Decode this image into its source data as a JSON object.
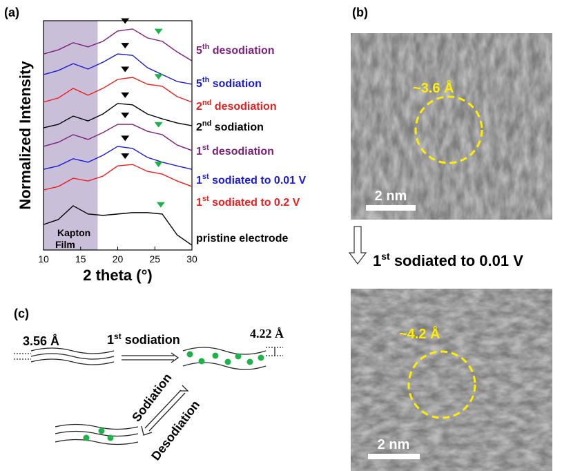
{
  "panel_labels": [
    "(a)",
    "(b)",
    "(c)"
  ],
  "chart_data": {
    "type": "line",
    "x_label": "2 theta (°)",
    "y_label": "Normalized Intensity",
    "xlim": [
      10,
      30
    ],
    "xticks": [
      10,
      15,
      20,
      25,
      30
    ],
    "ylim": [
      0,
      10
    ],
    "shaded_region": {
      "range": [
        10,
        17.3
      ],
      "color": "#c9bfd8",
      "label": [
        "Kapton",
        "Film"
      ]
    },
    "x": [
      10,
      12,
      14,
      16,
      18,
      20,
      22,
      24,
      26,
      28,
      30
    ],
    "series": [
      {
        "name": {
          "num": "5",
          "sup": "th",
          "text": " desodiation"
        },
        "color": "#7b1f7b",
        "values": [
          8.55,
          8.73,
          9.04,
          8.86,
          9.1,
          9.55,
          9.64,
          9.25,
          9.1,
          8.64,
          8.25
        ],
        "markers": [
          {
            "x": 21,
            "color": "#000000"
          },
          {
            "x": 25.5,
            "color": "#1db34a"
          }
        ]
      },
      {
        "name": {
          "num": "5",
          "sup": "th",
          "text": " sodiation"
        },
        "color": "#1a1ad6",
        "values": [
          7.65,
          7.83,
          8.13,
          7.89,
          8.19,
          8.55,
          8.49,
          7.95,
          7.65,
          7.35,
          7.23
        ],
        "markers": [
          {
            "x": 21,
            "color": "#000000"
          }
        ]
      },
      {
        "name": {
          "num": "2",
          "sup": "nd",
          "text": " desodiation"
        },
        "color": "#f01c1c",
        "values": [
          6.45,
          6.63,
          7.05,
          6.75,
          7.05,
          7.44,
          7.53,
          7.23,
          7.14,
          6.69,
          6.45
        ],
        "markers": [
          {
            "x": 21,
            "color": "#000000"
          },
          {
            "x": 25.5,
            "color": "#1db34a"
          }
        ]
      },
      {
        "name": {
          "num": "2",
          "sup": "nd",
          "text": " sodiation"
        },
        "color": "#000000",
        "values": [
          5.33,
          5.48,
          5.84,
          5.63,
          5.93,
          6.39,
          6.33,
          5.93,
          5.72,
          5.54,
          5.42
        ],
        "markers": [
          {
            "x": 21,
            "color": "#000000"
          }
        ]
      },
      {
        "name": {
          "num": "1",
          "sup": "st",
          "text": " desodiation"
        },
        "color": "#7b1f7b",
        "values": [
          4.52,
          4.7,
          5.03,
          4.82,
          5.12,
          5.48,
          5.48,
          5.18,
          5.03,
          4.58,
          4.34
        ],
        "markers": [
          {
            "x": 21,
            "color": "#000000"
          },
          {
            "x": 25.5,
            "color": "#1db34a"
          }
        ]
      },
      {
        "name": {
          "num": "1",
          "sup": "st",
          "text": " sodiated to 0.01 V"
        },
        "color": "#1a1ad6",
        "values": [
          3.52,
          3.67,
          3.98,
          3.83,
          4.13,
          4.52,
          4.43,
          4.04,
          3.83,
          3.67,
          3.52
        ],
        "markers": [
          {
            "x": 21,
            "color": "#000000"
          }
        ]
      },
      {
        "name": {
          "num": "1",
          "sup": "st",
          "text": " sodiated to 0.2 V"
        },
        "color": "#f01c1c",
        "values": [
          2.62,
          2.77,
          3.13,
          3.01,
          3.22,
          3.67,
          3.73,
          3.43,
          3.31,
          3.01,
          2.77
        ],
        "markers": [
          {
            "x": 21,
            "color": "#000000"
          },
          {
            "x": 25.5,
            "color": "#1db34a"
          }
        ]
      },
      {
        "name": {
          "text": "pristine electrode"
        },
        "color": "#000000",
        "values": [
          1.11,
          1.33,
          1.93,
          1.57,
          1.51,
          1.57,
          1.63,
          1.63,
          1.57,
          0.66,
          0.21
        ],
        "markers": [
          {
            "x": 25.8,
            "color": "#1db34a"
          }
        ]
      }
    ]
  },
  "tem": {
    "images": [
      {
        "spacing": "~3.6 Å",
        "scale_bar": "2 nm"
      },
      {
        "spacing": "~4.2 Å",
        "scale_bar": "2 nm"
      }
    ],
    "arrow_label": {
      "num": "1",
      "sup": "st",
      "text": " sodiated to 0.01 V"
    }
  },
  "diagram": {
    "spacing_before": "3.56 Å",
    "arrow_label": {
      "num": "1",
      "sup": "st",
      "text": " sodiation"
    },
    "spacing_after": "4.22 Å",
    "sodiation": "Sodiation",
    "desodiation": "Desodiation"
  }
}
